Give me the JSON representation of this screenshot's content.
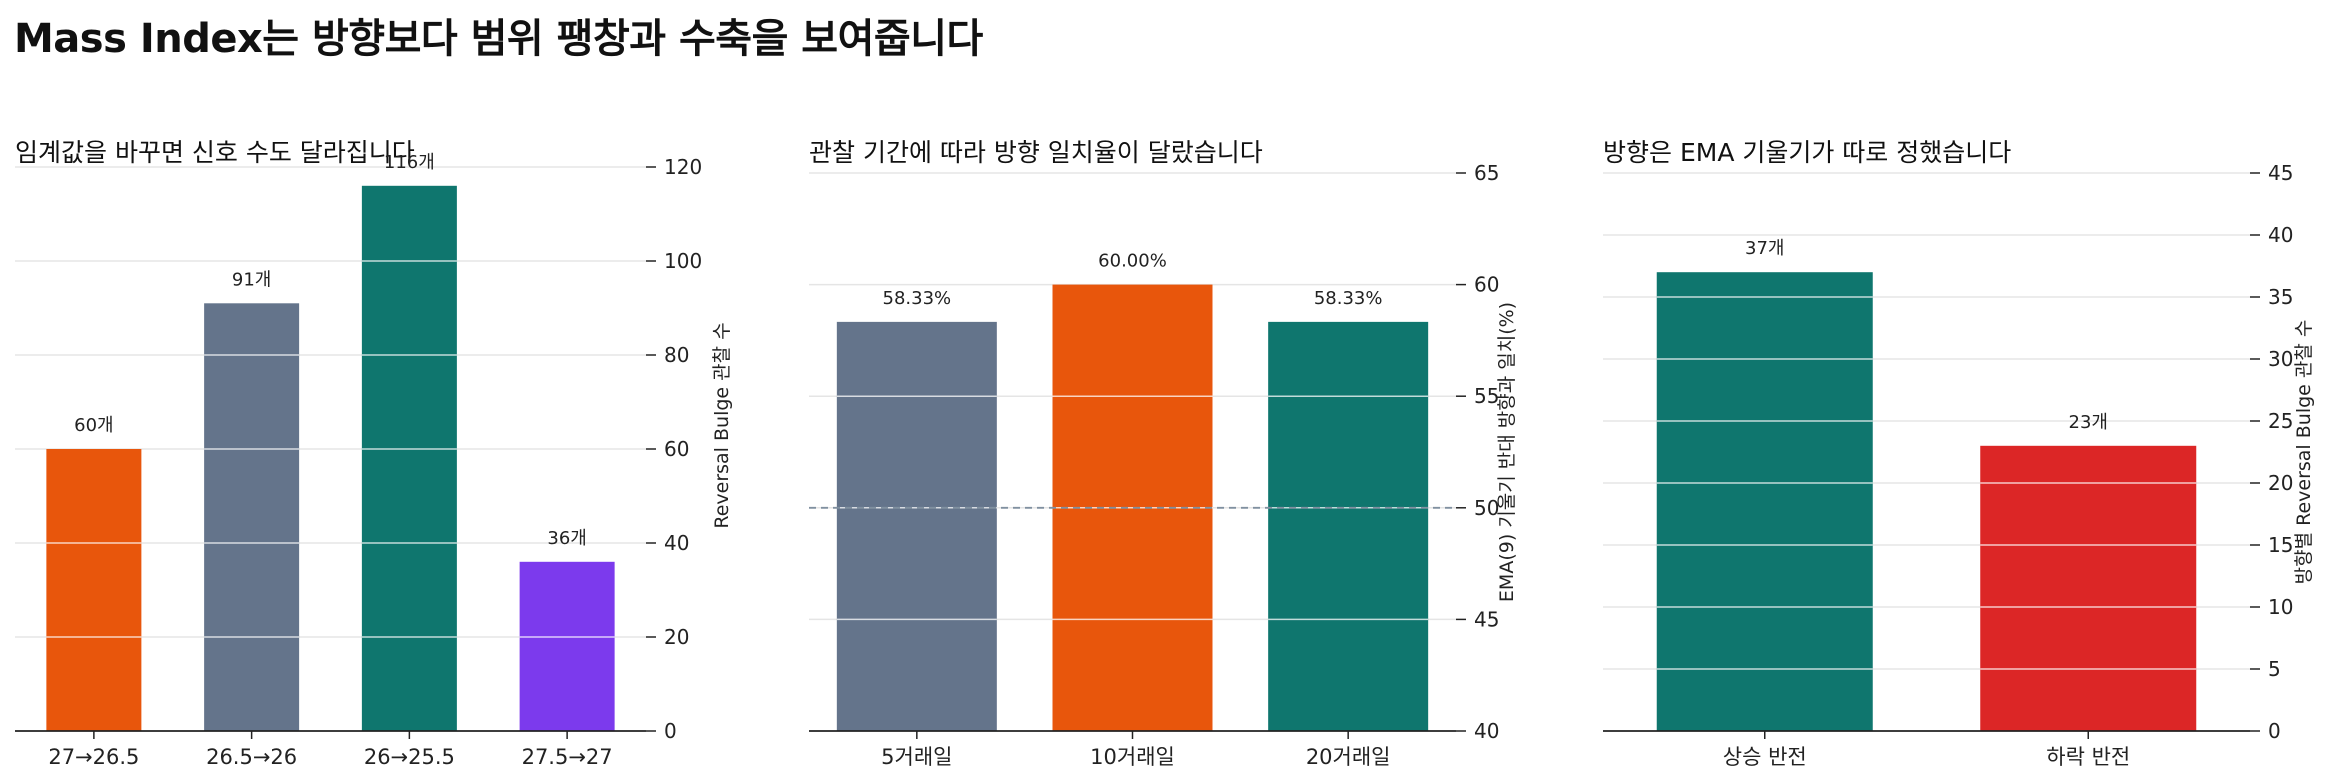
{
  "main_title": "Mass Index는 방향보다 범위 팽창과 수축을 보여줍니다",
  "chart_data": [
    {
      "type": "bar",
      "title": "임계값을 바꾸면 신호 수도 달라집니다",
      "categories": [
        "27→26.5",
        "26.5→26",
        "26→25.5",
        "27.5→27"
      ],
      "values": [
        60,
        91,
        116,
        36
      ],
      "value_labels": [
        "60개",
        "91개",
        "116개",
        "36개"
      ],
      "colors": [
        "#e8560c",
        "#64748b",
        "#0f766e",
        "#7c3aed"
      ],
      "xlabel": "",
      "ylabel": "Reversal Bulge 관찰 수",
      "ylim": [
        0,
        130
      ],
      "yticks": [
        0,
        20,
        40,
        60,
        80,
        100,
        120
      ],
      "grid": true,
      "y_axis_side": "right"
    },
    {
      "type": "bar",
      "title": "관찰 기간에 따라 방향 일치율이 달랐습니다",
      "categories": [
        "5거래일",
        "10거래일",
        "20거래일"
      ],
      "values": [
        58.33,
        60.0,
        58.33
      ],
      "value_labels": [
        "58.33%",
        "60.00%",
        "58.33%"
      ],
      "colors": [
        "#64748b",
        "#e8560c",
        "#0f766e"
      ],
      "xlabel": "",
      "ylabel": "EMA(9) 기울기 반대 방향과 일치(%)",
      "ylim": [
        40,
        65
      ],
      "yticks": [
        40,
        45,
        50,
        55,
        60,
        65
      ],
      "reference_line": 50,
      "grid": true,
      "y_axis_side": "right"
    },
    {
      "type": "bar",
      "title": "방향은 EMA 기울기가 따로 정했습니다",
      "categories": [
        "상승 반전",
        "하락 반전"
      ],
      "values": [
        37,
        23
      ],
      "value_labels": [
        "37개",
        "23개"
      ],
      "colors": [
        "#0f766e",
        "#dc2626"
      ],
      "xlabel": "",
      "ylabel": "방향별 Reversal Bulge 관찰 수",
      "ylim": [
        0,
        45
      ],
      "yticks": [
        0,
        5,
        10,
        15,
        20,
        25,
        30,
        35,
        40,
        45
      ],
      "grid": true,
      "y_axis_side": "right"
    }
  ]
}
